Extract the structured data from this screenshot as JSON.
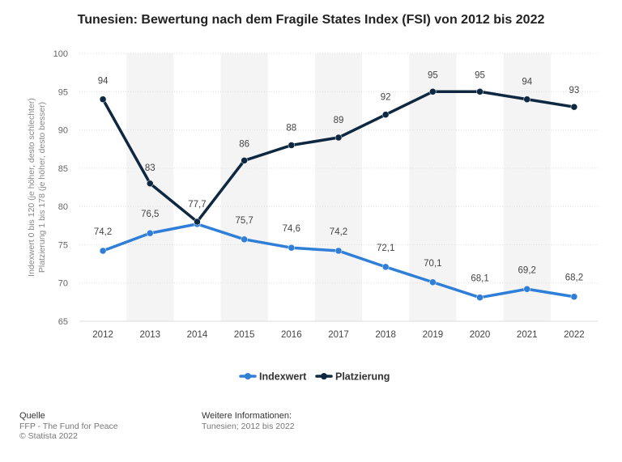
{
  "title": "Tunesien: Bewertung nach dem Fragile States Index (FSI) von 2012 bis 2022",
  "chart_data": {
    "type": "line",
    "categories": [
      "2012",
      "2013",
      "2014",
      "2015",
      "2016",
      "2017",
      "2018",
      "2019",
      "2020",
      "2021",
      "2022"
    ],
    "series": [
      {
        "name": "Indexwert",
        "color": "#2f7ed8",
        "values": [
          74.2,
          76.5,
          77.7,
          75.7,
          74.6,
          74.2,
          72.1,
          70.1,
          68.1,
          69.2,
          68.2
        ],
        "labels": [
          "74,2",
          "76,5",
          "77,7",
          "75,7",
          "74,6",
          "74,2",
          "72,1",
          "70,1",
          "68,1",
          "69,2",
          "68,2"
        ]
      },
      {
        "name": "Platzierung",
        "color": "#0d2840",
        "values": [
          94,
          83,
          78,
          86,
          88,
          89,
          92,
          95,
          95,
          94,
          93
        ],
        "labels": [
          "94",
          "83",
          "",
          "86",
          "88",
          "89",
          "92",
          "95",
          "95",
          "94",
          "93"
        ]
      }
    ],
    "y_axis": {
      "min": 65,
      "max": 100,
      "step": 5,
      "ticks": [
        "65",
        "70",
        "75",
        "80",
        "85",
        "90",
        "95",
        "100"
      ],
      "label_line1": "Indexwert 0 bis 120 (je höher, desto schlechter)",
      "label_line2": "Platzierung 1 bis 178 (je höher, desto besser)"
    },
    "grid": true,
    "legend_position": "bottom-center"
  },
  "footer": {
    "source_heading": "Quelle",
    "source_line1": "FFP - The Fund for Peace",
    "source_line2": "© Statista 2022",
    "info_heading": "Weitere Informationen:",
    "info_line1": "Tunesien; 2012 bis 2022"
  }
}
